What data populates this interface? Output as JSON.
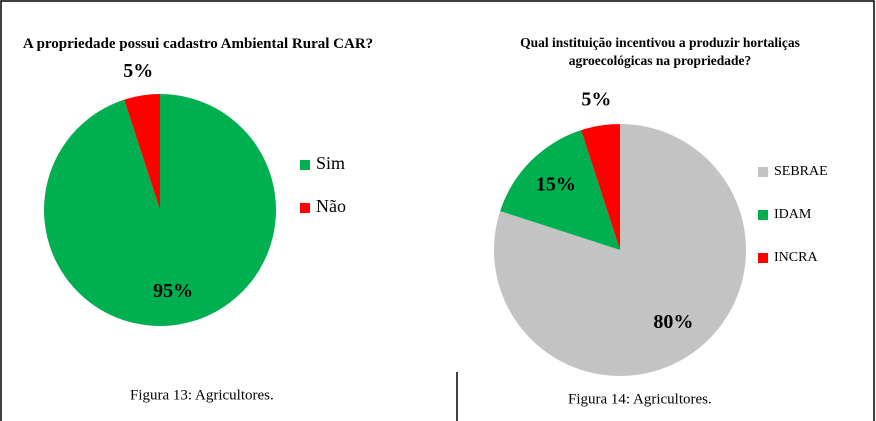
{
  "chart_data": [
    {
      "type": "pie",
      "title": "A propriedade possui cadastro Ambiental Rural CAR?",
      "categories": [
        "Sim",
        "Não"
      ],
      "values": [
        95,
        5
      ],
      "value_labels": [
        "95%",
        "5%"
      ],
      "colors": [
        "#00b050",
        "#ff0000"
      ],
      "caption": "Figura 13: Agricultores."
    },
    {
      "type": "pie",
      "title": "Qual instituição incentivou a produzir hortaliças agroecológicas na propriedade?",
      "categories": [
        "SEBRAE",
        "IDAM",
        "INCRA"
      ],
      "values": [
        80,
        15,
        5
      ],
      "value_labels": [
        "80%",
        "15%",
        "5%"
      ],
      "colors": [
        "#c3c3c3",
        "#00b050",
        "#ff0000"
      ],
      "caption": "Figura 14: Agricultores."
    }
  ]
}
